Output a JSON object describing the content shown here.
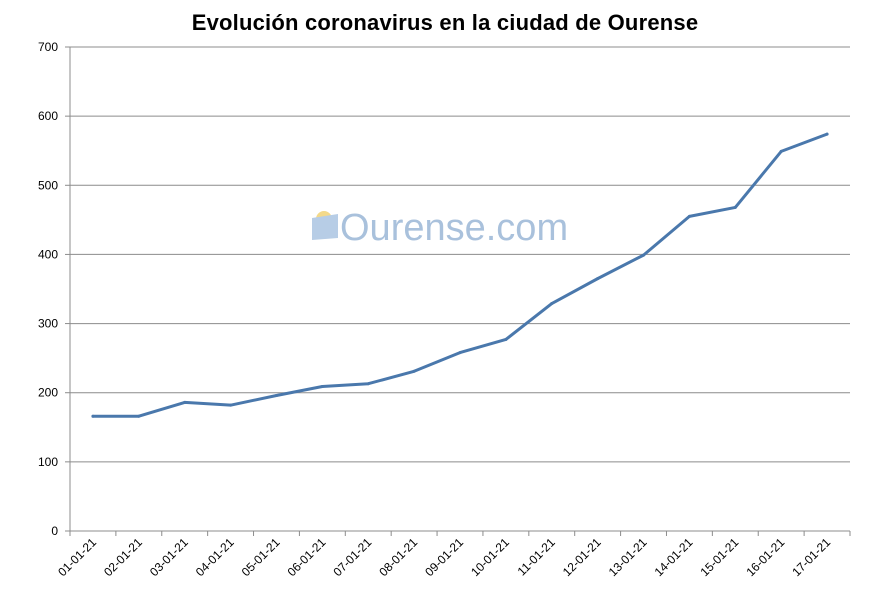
{
  "chart_data": {
    "type": "line",
    "title": "Evolución coronavirus en la ciudad de Ourense",
    "xlabel": "",
    "ylabel": "",
    "categories": [
      "01-01-21",
      "02-01-21",
      "03-01-21",
      "04-01-21",
      "05-01-21",
      "06-01-21",
      "07-01-21",
      "08-01-21",
      "09-01-21",
      "10-01-21",
      "11-01-21",
      "12-01-21",
      "13-01-21",
      "14-01-21",
      "15-01-21",
      "16-01-21",
      "17-01-21"
    ],
    "series": [
      {
        "values": [
          166,
          166,
          186,
          182,
          196,
          209,
          213,
          231,
          258,
          277,
          329,
          365,
          399,
          455,
          468,
          549,
          574
        ]
      }
    ],
    "ylim": [
      0,
      700
    ],
    "yticks": [
      0,
      100,
      200,
      300,
      400,
      500,
      600,
      700
    ],
    "grid": true,
    "legend": "none",
    "line_color": "#4a78ac",
    "grid_color": "#8c8c8c"
  },
  "watermark": {
    "text": "Ourense.com",
    "color": "#a9c1dc"
  }
}
